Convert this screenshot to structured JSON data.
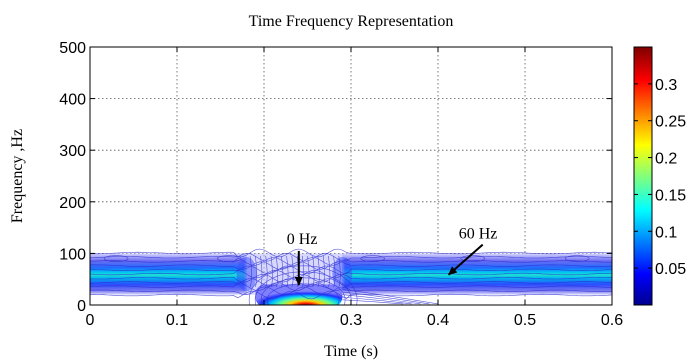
{
  "chart_data": {
    "type": "heatmap",
    "title": "Time Frequency Representation",
    "xlabel": "Time (s)",
    "ylabel": "Frequency ,Hz",
    "xlim": [
      0,
      0.6
    ],
    "ylim": [
      0,
      500
    ],
    "xticks": [
      0,
      0.1,
      0.2,
      0.3,
      0.4,
      0.5,
      0.6
    ],
    "xtick_labels": [
      "0",
      "0.1",
      "0.2",
      "0.3",
      "0.4",
      "0.5",
      "0.6"
    ],
    "yticks": [
      0,
      100,
      200,
      300,
      400,
      500
    ],
    "ytick_labels": [
      "0",
      "100",
      "200",
      "300",
      "400",
      "500"
    ],
    "grid": true,
    "colormap": "jet",
    "colorbar": {
      "range": [
        0,
        0.35
      ],
      "ticks": [
        0.05,
        0.1,
        0.15,
        0.2,
        0.25,
        0.3
      ],
      "tick_labels": [
        "0.05",
        "0.1",
        "0.15",
        "0.2",
        "0.25",
        "0.3"
      ]
    },
    "components": [
      {
        "label": "60 Hz",
        "frequency": 60,
        "time_ranges": [
          [
            0,
            0.18
          ],
          [
            0.29,
            0.6
          ]
        ],
        "peak_magnitude": 0.15
      },
      {
        "label": "0 Hz",
        "frequency": 0,
        "time_ranges": [
          [
            0.19,
            0.29
          ]
        ],
        "peak_magnitude": 0.35
      }
    ],
    "annotations": [
      {
        "text": "0 Hz",
        "arrow_to": [
          0.24,
          35
        ]
      },
      {
        "text": "60 Hz",
        "arrow_to": [
          0.41,
          55
        ]
      }
    ]
  }
}
